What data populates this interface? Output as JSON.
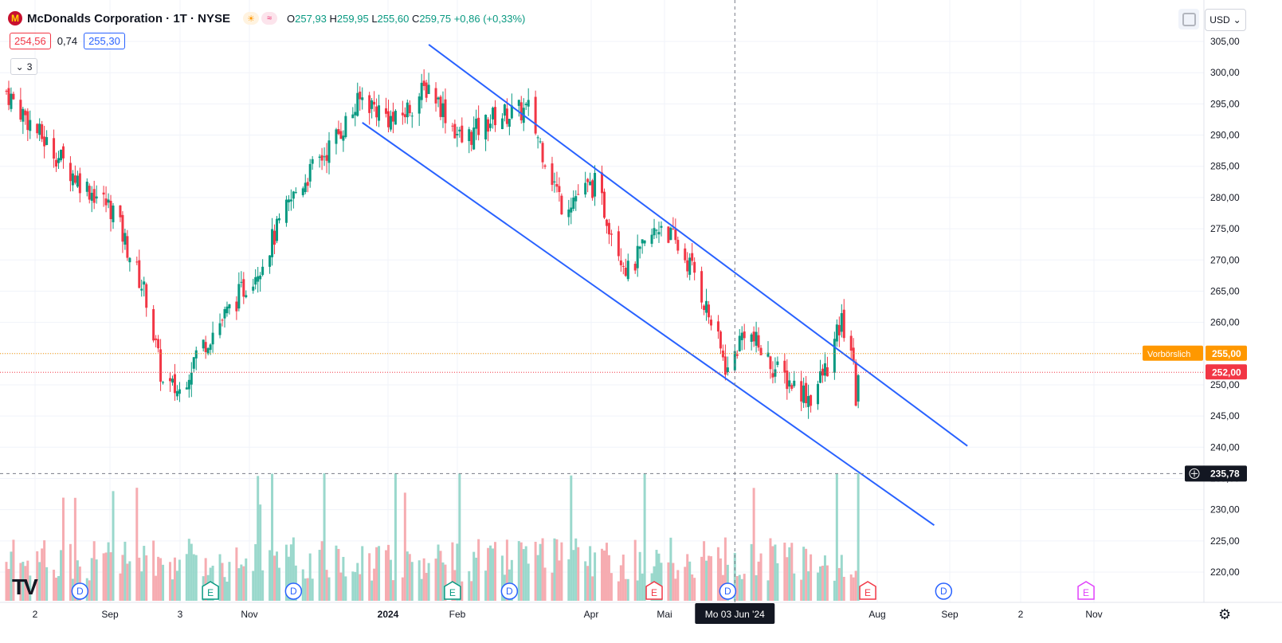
{
  "header": {
    "logo_glyph": "M",
    "title": "McDonalds Corporation · 1T · NYSE",
    "badge_icons": [
      "sun-icon",
      "approx-icon"
    ],
    "badge_glyphs": [
      "☀",
      "≈"
    ],
    "ohlc": {
      "o_label": "O",
      "o_value": "257,93",
      "h_label": "H",
      "h_value": "259,95",
      "l_label": "L",
      "l_value": "255,60",
      "c_label": "C",
      "c_value": "259,75",
      "change": "+0,86 (+0,33%)"
    },
    "sell_price": "254,56",
    "spread": "0,74",
    "buy_price": "255,30",
    "collapse_count": "3",
    "collapse_glyph": "⌄"
  },
  "top_right": {
    "currency": "USD",
    "currency_glyph": "⌄"
  },
  "colors": {
    "up": "#089981",
    "down": "#f23645",
    "channel": "#2962ff",
    "premarket": "#ff9800",
    "crosshair": "#787b86"
  },
  "chart_data": {
    "type": "candlestick",
    "symbol": "McDonalds Corporation",
    "interval": "1T",
    "exchange": "NYSE",
    "ylim": [
      216,
      307
    ],
    "y_ticks": [
      "220,00",
      "225,00",
      "230,00",
      "235,00",
      "240,00",
      "245,00",
      "250,00",
      "255,00",
      "260,00",
      "265,00",
      "270,00",
      "275,00",
      "280,00",
      "285,00",
      "290,00",
      "295,00",
      "300,00",
      "305,00"
    ],
    "x_axis_labels": [
      "2",
      "Sep",
      "3",
      "Nov",
      "2024",
      "Feb",
      "Apr",
      "Mai",
      "Aug",
      "Sep",
      "2",
      "Nov"
    ],
    "crosshair_date_label": "Mo 03 Jun '24",
    "crosshair_price_label": "235,78",
    "crosshair_price": 235.78,
    "premarket_label": "Vorbörslich",
    "premarket_price_label": "255,00",
    "premarket_price": 255.0,
    "last_price_label": "252,00",
    "last_price": 252.0,
    "price_closes": [
      {
        "date": "2023-08-01",
        "close": 297.0
      },
      {
        "date": "2023-08-15",
        "close": 290.0
      },
      {
        "date": "2023-08-31",
        "close": 283.0
      },
      {
        "date": "2023-09-15",
        "close": 278.0
      },
      {
        "date": "2023-09-29",
        "close": 264.0
      },
      {
        "date": "2023-10-06",
        "close": 250.0
      },
      {
        "date": "2023-10-13",
        "close": 249.0
      },
      {
        "date": "2023-10-20",
        "close": 255.0
      },
      {
        "date": "2023-11-03",
        "close": 262.0
      },
      {
        "date": "2023-11-17",
        "close": 270.0
      },
      {
        "date": "2023-12-01",
        "close": 281.0
      },
      {
        "date": "2023-12-15",
        "close": 288.0
      },
      {
        "date": "2023-12-29",
        "close": 296.0
      },
      {
        "date": "2024-01-12",
        "close": 292.0
      },
      {
        "date": "2024-01-26",
        "close": 298.0
      },
      {
        "date": "2024-02-09",
        "close": 289.0
      },
      {
        "date": "2024-02-23",
        "close": 293.0
      },
      {
        "date": "2024-03-08",
        "close": 294.0
      },
      {
        "date": "2024-03-22",
        "close": 279.0
      },
      {
        "date": "2024-04-05",
        "close": 282.0
      },
      {
        "date": "2024-04-19",
        "close": 268.0
      },
      {
        "date": "2024-05-03",
        "close": 276.0
      },
      {
        "date": "2024-05-17",
        "close": 268.0
      },
      {
        "date": "2024-05-31",
        "close": 252.0
      },
      {
        "date": "2024-06-07",
        "close": 259.0
      },
      {
        "date": "2024-06-21",
        "close": 252.0
      },
      {
        "date": "2024-07-05",
        "close": 248.0
      },
      {
        "date": "2024-07-12",
        "close": 253.0
      },
      {
        "date": "2024-07-18",
        "close": 260.0
      },
      {
        "date": "2024-07-22",
        "close": 256.0
      },
      {
        "date": "2024-07-24",
        "close": 248.0
      },
      {
        "date": "2024-07-25",
        "close": 252.0
      }
    ],
    "trend_channel": {
      "upper": [
        {
          "date": "2024-01-26",
          "price": 304.5
        },
        {
          "date": "2024-09-09",
          "price": 240.2
        }
      ],
      "lower": [
        {
          "date": "2023-12-29",
          "price": 292.0
        },
        {
          "date": "2024-08-26",
          "price": 227.5
        }
      ]
    },
    "event_markers": [
      {
        "date": "2023-09-01",
        "label": "D"
      },
      {
        "date": "2023-10-26",
        "label": "E"
      },
      {
        "date": "2023-11-30",
        "label": "D"
      },
      {
        "date": "2024-02-05",
        "label": "E"
      },
      {
        "date": "2024-02-29",
        "label": "D"
      },
      {
        "date": "2024-04-30",
        "label": "E"
      },
      {
        "date": "2024-05-31",
        "label": "D"
      },
      {
        "date": "2024-07-29",
        "label": "E"
      },
      {
        "date": "2024-08-30",
        "label": "D"
      },
      {
        "date": "2024-10-29",
        "label": "E"
      }
    ],
    "volume_shown": true
  }
}
